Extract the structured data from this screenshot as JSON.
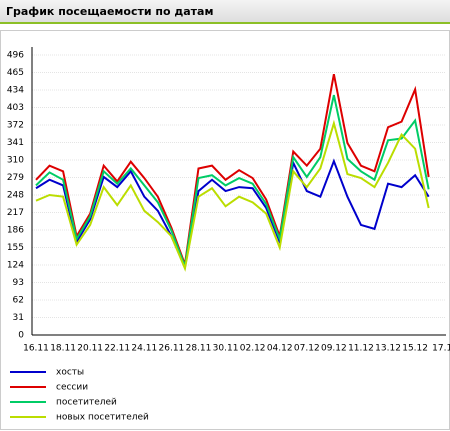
{
  "chart_data": {
    "type": "line",
    "title": "График посещаемости по датам",
    "categories": [
      "16.11",
      null,
      "18.11",
      null,
      "20.11",
      null,
      "22.11",
      null,
      "24.11",
      null,
      "26.11",
      null,
      "28.11",
      null,
      "30.11",
      null,
      "02.12",
      null,
      "04.12",
      null,
      "07.12",
      null,
      "09.12",
      null,
      "11.12",
      null,
      "13.12",
      null,
      "15.12",
      null,
      "17.1"
    ],
    "ylim": [
      0,
      496
    ],
    "yticks": [
      0,
      31,
      62,
      93,
      124,
      155,
      186,
      217,
      248,
      279,
      310,
      341,
      372,
      403,
      434,
      465,
      496
    ],
    "grid": true,
    "series": [
      {
        "name": "хосты",
        "color": "#0000cc",
        "values": [
          260,
          275,
          265,
          165,
          205,
          280,
          262,
          290,
          245,
          220,
          175,
          120,
          255,
          275,
          255,
          262,
          260,
          225,
          165,
          305,
          255,
          245,
          308,
          245,
          195,
          188,
          268,
          262,
          283,
          245,
          null
        ]
      },
      {
        "name": "сессии",
        "color": "#dd0000",
        "values": [
          275,
          300,
          290,
          175,
          215,
          300,
          272,
          307,
          278,
          245,
          190,
          125,
          295,
          300,
          275,
          292,
          278,
          240,
          175,
          325,
          300,
          330,
          462,
          340,
          300,
          290,
          368,
          378,
          435,
          280,
          null
        ]
      },
      {
        "name": "посетителей",
        "color": "#00cc66",
        "values": [
          265,
          288,
          275,
          170,
          210,
          290,
          268,
          295,
          265,
          235,
          185,
          122,
          278,
          283,
          265,
          278,
          268,
          232,
          170,
          315,
          280,
          315,
          425,
          312,
          290,
          275,
          345,
          348,
          380,
          258,
          null
        ]
      },
      {
        "name": "новых посетителей",
        "color": "#bbdd00",
        "values": [
          238,
          248,
          245,
          160,
          195,
          262,
          230,
          265,
          220,
          200,
          175,
          118,
          245,
          260,
          228,
          245,
          235,
          215,
          155,
          290,
          262,
          295,
          375,
          285,
          278,
          262,
          305,
          355,
          330,
          225,
          null
        ]
      }
    ]
  }
}
